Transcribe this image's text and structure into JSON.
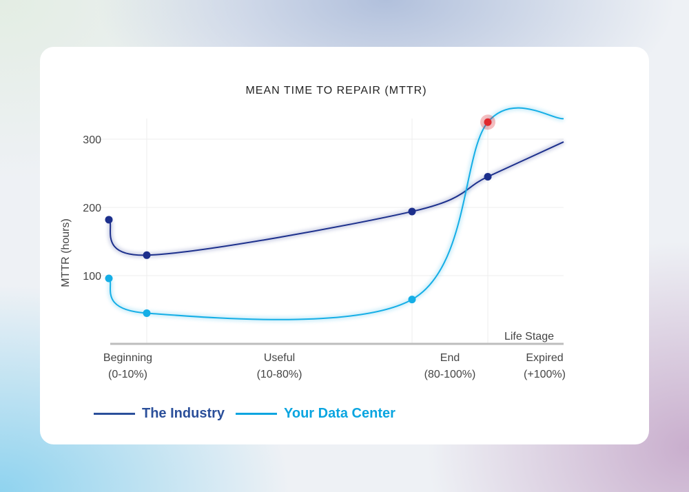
{
  "chart_data": {
    "type": "line",
    "title": "MEAN TIME TO REPAIR (MTTR)",
    "ylabel": "MTTR (hours)",
    "xlabel": "Life Stage",
    "ylim": [
      0,
      340
    ],
    "yticks": [
      100,
      200,
      300
    ],
    "xlim": [
      0,
      120
    ],
    "x_unit": "% of life",
    "x_categories": [
      {
        "line1": "Beginning",
        "line2": "(0-10%)",
        "center": 5
      },
      {
        "line1": "Useful",
        "line2": "(10-80%)",
        "center": 45
      },
      {
        "line1": "End",
        "line2": "(80-100%)",
        "center": 90
      },
      {
        "line1": "Expired",
        "line2": "(+100%)",
        "center": 115
      }
    ],
    "grid": true,
    "legend_position": "bottom-left",
    "series": [
      {
        "name": "The Industry",
        "color": "#1c2f8c",
        "legend_color": "#2b4f9a",
        "x": [
          0,
          10,
          80,
          100,
          120
        ],
        "values": [
          182,
          130,
          194,
          245,
          296
        ],
        "markers": [
          0,
          1,
          2,
          3
        ]
      },
      {
        "name": "Your Data Center",
        "color": "#14aee6",
        "legend_color": "#0aa5e0",
        "x": [
          0,
          10,
          80,
          100,
          120
        ],
        "values": [
          96,
          45,
          65,
          325,
          330
        ],
        "markers": [
          0,
          1,
          2,
          3
        ],
        "highlight_index": 3,
        "highlight_color": "#e0282e"
      }
    ]
  }
}
